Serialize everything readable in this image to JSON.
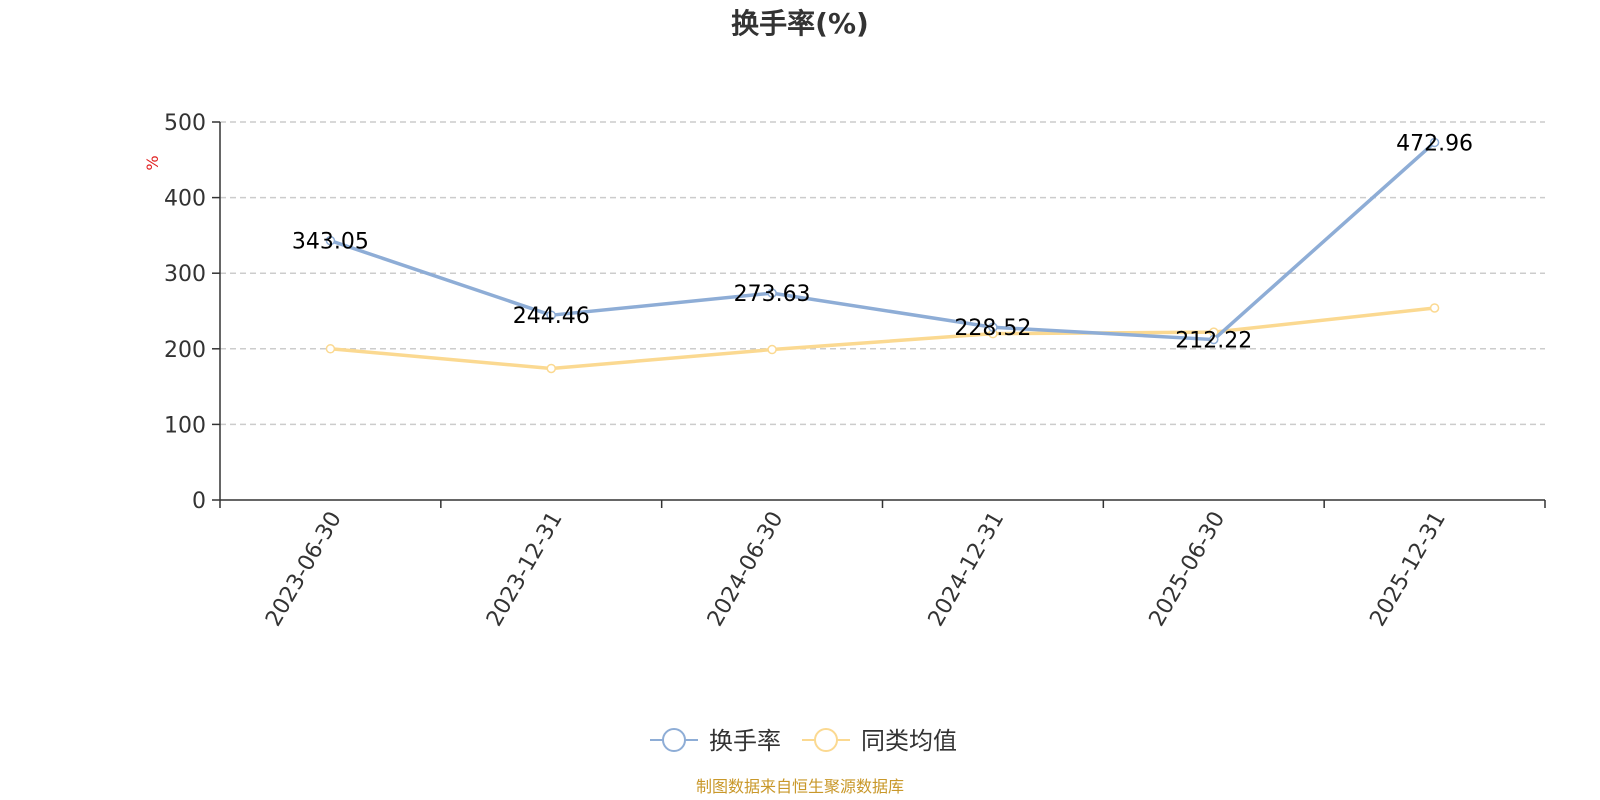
{
  "chart_data": {
    "type": "line",
    "title": "换手率(%)",
    "ylabel": "%",
    "ylim": [
      0,
      500
    ],
    "yticks": [
      0,
      100,
      200,
      300,
      400,
      500
    ],
    "grid": true,
    "legend_position": "bottom",
    "categories": [
      "2023-06-30",
      "2023-12-31",
      "2024-06-30",
      "2024-12-31",
      "2025-06-30",
      "2025-12-31"
    ],
    "series": [
      {
        "name": "换手率",
        "color": "#8eadd6",
        "values": [
          343.05,
          244.46,
          273.63,
          228.52,
          212.22,
          472.96
        ],
        "labels": [
          "343.05",
          "244.46",
          "273.63",
          "228.52",
          "212.22",
          "472.96"
        ]
      },
      {
        "name": "同类均值",
        "color": "#fbd991",
        "values": [
          200,
          174,
          199,
          220,
          222,
          254
        ]
      }
    ]
  },
  "footer": {
    "text": "制图数据来自恒生聚源数据库",
    "color": "#c9982a"
  },
  "unit_color": "#e02020"
}
